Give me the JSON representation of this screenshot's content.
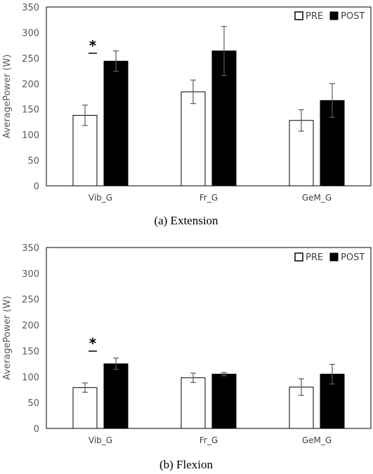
{
  "chart_data": [
    {
      "type": "bar",
      "caption": "(a) Extension",
      "ylabel": "AveragePower (W)",
      "xlabel": "",
      "ylim": [
        0,
        350
      ],
      "yticks": [
        0,
        50,
        100,
        150,
        200,
        250,
        300,
        350
      ],
      "categories": [
        "Vib_G",
        "Fr_G",
        "GeM_G"
      ],
      "legend": {
        "position": "top-right",
        "entries": [
          "PRE",
          "POST"
        ]
      },
      "grid": false,
      "series": [
        {
          "name": "PRE",
          "values": [
            138,
            184,
            128
          ],
          "errors": [
            20,
            23,
            21
          ],
          "color": "#ffffff"
        },
        {
          "name": "POST",
          "values": [
            244,
            264,
            167
          ],
          "errors": [
            20,
            48,
            33
          ],
          "color": "#000000"
        }
      ],
      "annotations": [
        {
          "text": "*",
          "category": "Vib_G",
          "note_level": 265
        }
      ]
    },
    {
      "type": "bar",
      "caption": "(b) Flexion",
      "ylabel": "AveragePower (W)",
      "xlabel": "",
      "ylim": [
        0,
        350
      ],
      "yticks": [
        0,
        50,
        100,
        150,
        200,
        250,
        300,
        350
      ],
      "categories": [
        "Vib_G",
        "Fr_G",
        "GeM_G"
      ],
      "legend": {
        "position": "top-right",
        "entries": [
          "PRE",
          "POST"
        ]
      },
      "grid": false,
      "series": [
        {
          "name": "PRE",
          "values": [
            79,
            98,
            80
          ],
          "errors": [
            9,
            9,
            16
          ],
          "color": "#ffffff"
        },
        {
          "name": "POST",
          "values": [
            125,
            105,
            105
          ],
          "errors": [
            11,
            3,
            19
          ],
          "color": "#000000"
        }
      ],
      "annotations": [
        {
          "text": "*",
          "category": "Vib_G",
          "note_level": 155
        }
      ]
    }
  ]
}
